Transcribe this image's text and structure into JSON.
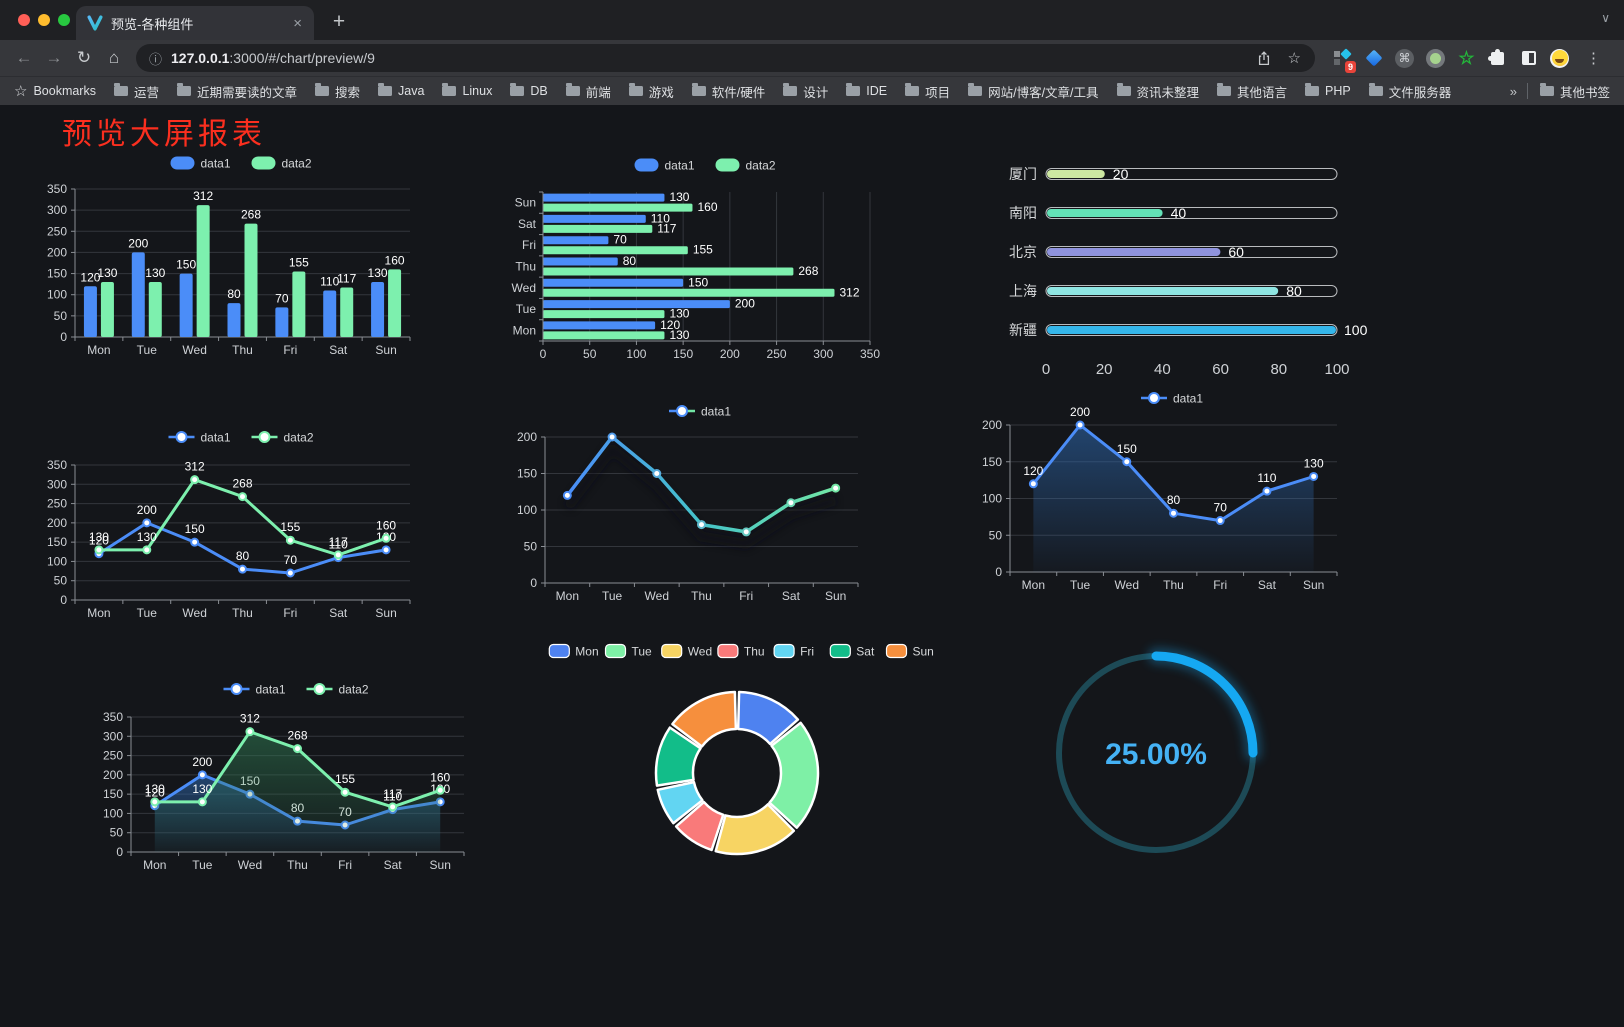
{
  "browser": {
    "tab_title": "预览-各种组件",
    "tab_close": "×",
    "new_tab": "+",
    "tab_search_chevron": "∨",
    "back_icon": "←",
    "forward_icon": "→",
    "reload_icon": "↻",
    "home_icon": "⌂",
    "info_icon": "ⓘ",
    "url_host": "127.0.0.1",
    "url_path": ":3000/#/chart/preview/9",
    "bookmark_star_icon": "☆",
    "extension_badge": "9",
    "kebab_icon": "⋮",
    "bookmarks_label": "Bookmarks",
    "bookmarks": [
      "运营",
      "近期需要读的文章",
      "搜索",
      "Java",
      "Linux",
      "DB",
      "前端",
      "游戏",
      "软件/硬件",
      "设计",
      "IDE",
      "项目",
      "网站/博客/文章/工具",
      "资讯未整理",
      "其他语言",
      "PHP",
      "文件服务器"
    ],
    "bookmarks_overflow": "»",
    "other_bookmarks": "其他书签"
  },
  "page": {
    "title": "预览大屏报表",
    "title_color": "#fb2f1f"
  },
  "theme": {
    "background": "#14161a",
    "grid": "#33363c",
    "axis": "#8a8e94",
    "tick_text": "#cfd2d6",
    "value_text": "#ffffff",
    "legend_text": "#d6d8da",
    "blue": "#4B8DF8",
    "green": "#7DF0AE"
  },
  "charts": {
    "bar": {
      "type": "bar",
      "categories": [
        "Mon",
        "Tue",
        "Wed",
        "Thu",
        "Fri",
        "Sat",
        "Sun"
      ],
      "series": [
        {
          "name": "data1",
          "color": "#4B8DF8",
          "values": [
            120,
            200,
            150,
            80,
            70,
            110,
            130
          ]
        },
        {
          "name": "data2",
          "color": "#7DF0AE",
          "values": [
            130,
            130,
            312,
            268,
            155,
            117,
            160
          ]
        }
      ],
      "ymax": 350,
      "ystep": 50,
      "show_labels": true
    },
    "hbar": {
      "type": "hbar",
      "categories": [
        "Mon",
        "Tue",
        "Wed",
        "Thu",
        "Fri",
        "Sat",
        "Sun"
      ],
      "series": [
        {
          "name": "data1",
          "color": "#4B8DF8",
          "values": [
            120,
            200,
            150,
            80,
            70,
            110,
            130
          ]
        },
        {
          "name": "data2",
          "color": "#7DF0AE",
          "values": [
            130,
            130,
            312,
            268,
            155,
            117,
            160
          ]
        }
      ],
      "xmax": 350,
      "xstep": 50,
      "show_labels": true
    },
    "progress": {
      "type": "progress-bars",
      "rows": [
        {
          "label": "厦门",
          "value": 20,
          "color": "#cde8a2"
        },
        {
          "label": "南阳",
          "value": 40,
          "color": "#63e2b7"
        },
        {
          "label": "北京",
          "value": 60,
          "color": "#8f93dd"
        },
        {
          "label": "上海",
          "value": 80,
          "color": "#8fe5e2"
        },
        {
          "label": "新疆",
          "value": 100,
          "color": "#35b6ea"
        }
      ],
      "max": 100,
      "axis_ticks": [
        0,
        20,
        40,
        60,
        80,
        100
      ]
    },
    "line_two": {
      "type": "line",
      "categories": [
        "Mon",
        "Tue",
        "Wed",
        "Thu",
        "Fri",
        "Sat",
        "Sun"
      ],
      "series": [
        {
          "name": "data1",
          "color": "#4B8DF8",
          "values": [
            120,
            200,
            150,
            80,
            70,
            110,
            130
          ]
        },
        {
          "name": "data2",
          "color": "#7DF0AE",
          "values": [
            130,
            130,
            312,
            268,
            155,
            117,
            160
          ]
        }
      ],
      "ymax": 350,
      "ystep": 50,
      "show_labels": true
    },
    "line_gradient": {
      "type": "line",
      "categories": [
        "Mon",
        "Tue",
        "Wed",
        "Thu",
        "Fri",
        "Sat",
        "Sun"
      ],
      "series": [
        {
          "name": "data1",
          "color": "#4B8DF8",
          "gradient": [
            "#4B8DF8",
            "#45C4C9",
            "#72E6A5"
          ],
          "values": [
            120,
            200,
            150,
            80,
            70,
            110,
            130
          ]
        }
      ],
      "ymax": 200,
      "ystep": 50,
      "show_labels": false
    },
    "area_one": {
      "type": "area",
      "categories": [
        "Mon",
        "Tue",
        "Wed",
        "Thu",
        "Fri",
        "Sat",
        "Sun"
      ],
      "series": [
        {
          "name": "data1",
          "color": "#4B8DF8",
          "fill": "#2e6bb4",
          "values": [
            120,
            200,
            150,
            80,
            70,
            110,
            130
          ]
        }
      ],
      "ymax": 200,
      "ystep": 50,
      "show_labels": true
    },
    "area_two": {
      "type": "area",
      "categories": [
        "Mon",
        "Tue",
        "Wed",
        "Thu",
        "Fri",
        "Sat",
        "Sun"
      ],
      "series": [
        {
          "name": "data1",
          "color": "#4B8DF8",
          "fill": "#2e6bb4",
          "values": [
            120,
            200,
            150,
            80,
            70,
            110,
            130
          ]
        },
        {
          "name": "data2",
          "color": "#7DF0AE",
          "fill": "#2f7a52",
          "values": [
            130,
            130,
            312,
            268,
            155,
            117,
            160
          ]
        }
      ],
      "ymax": 350,
      "ystep": 50,
      "show_labels": true
    },
    "donut": {
      "type": "pie",
      "items": [
        {
          "label": "Mon",
          "value": 120,
          "color": "#4E82F0"
        },
        {
          "label": "Tue",
          "value": 200,
          "color": "#7EF0A6"
        },
        {
          "label": "Wed",
          "value": 150,
          "color": "#F7D463"
        },
        {
          "label": "Thu",
          "value": 80,
          "color": "#F97A7A"
        },
        {
          "label": "Fri",
          "value": 70,
          "color": "#62D5F2"
        },
        {
          "label": "Sat",
          "value": 110,
          "color": "#12BD89"
        },
        {
          "label": "Sun",
          "value": 130,
          "color": "#F68F3D"
        }
      ]
    },
    "gauge": {
      "type": "gauge",
      "label": "25.00%",
      "percent": 25,
      "color": "#15A8F2",
      "track": "#1d4a56",
      "text_color": "#45B2F5"
    }
  }
}
